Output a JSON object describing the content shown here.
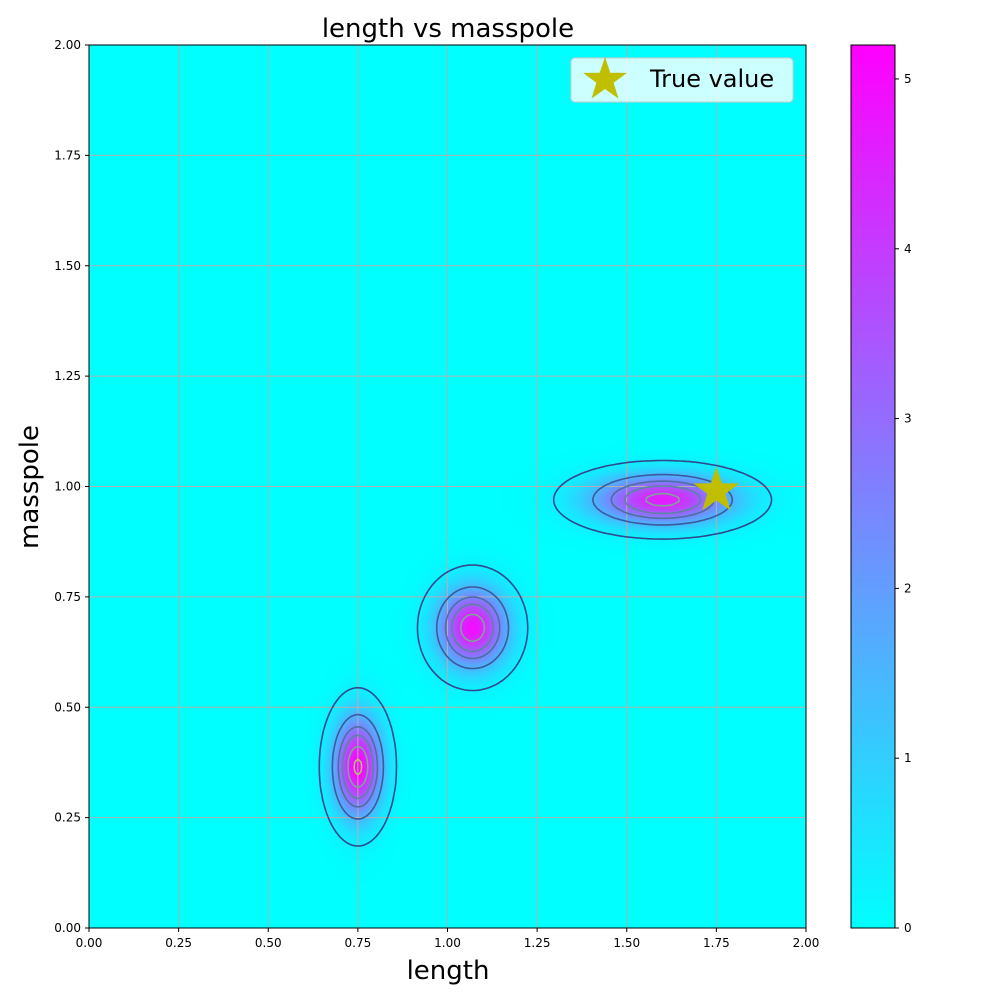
{
  "chart_data": {
    "type": "heatmap",
    "title": "length vs masspole",
    "xlabel": "length",
    "ylabel": "masspole",
    "xlim": [
      0,
      2
    ],
    "ylim": [
      0,
      2
    ],
    "grid": true,
    "xticks": [
      "0.00",
      "0.25",
      "0.50",
      "0.75",
      "1.00",
      "1.25",
      "1.50",
      "1.75",
      "2.00"
    ],
    "yticks": [
      "0.00",
      "0.25",
      "0.50",
      "0.75",
      "1.00",
      "1.25",
      "1.50",
      "1.75",
      "2.00"
    ],
    "colormap": [
      "#00ffff",
      "#ff00ff"
    ],
    "colorbar": {
      "range": [
        0,
        5.2
      ],
      "ticks": [
        "0",
        "1",
        "2",
        "3",
        "4",
        "5"
      ]
    },
    "density_peaks": [
      {
        "x": 0.75,
        "y": 0.365,
        "sx": 0.045,
        "sy": 0.075,
        "amp": 5.2
      },
      {
        "x": 1.07,
        "y": 0.68,
        "sx": 0.065,
        "sy": 0.06,
        "amp": 4.9
      },
      {
        "x": 1.6,
        "y": 0.97,
        "sx": 0.13,
        "sy": 0.038,
        "amp": 4.6
      }
    ],
    "contour_levels": [
      0.3,
      1.5,
      2.5,
      3.3,
      4.3,
      5.05
    ],
    "contour_colors": [
      "#2f4a8f",
      "#3d5a99",
      "#4f6ea1",
      "#5f82a5",
      "#7fa39a",
      "#b0bf73"
    ],
    "true_value": {
      "x": 1.75,
      "y": 0.99
    },
    "legend": {
      "label": "True value",
      "position": "top-right",
      "marker_color": "#bfbf00"
    }
  }
}
